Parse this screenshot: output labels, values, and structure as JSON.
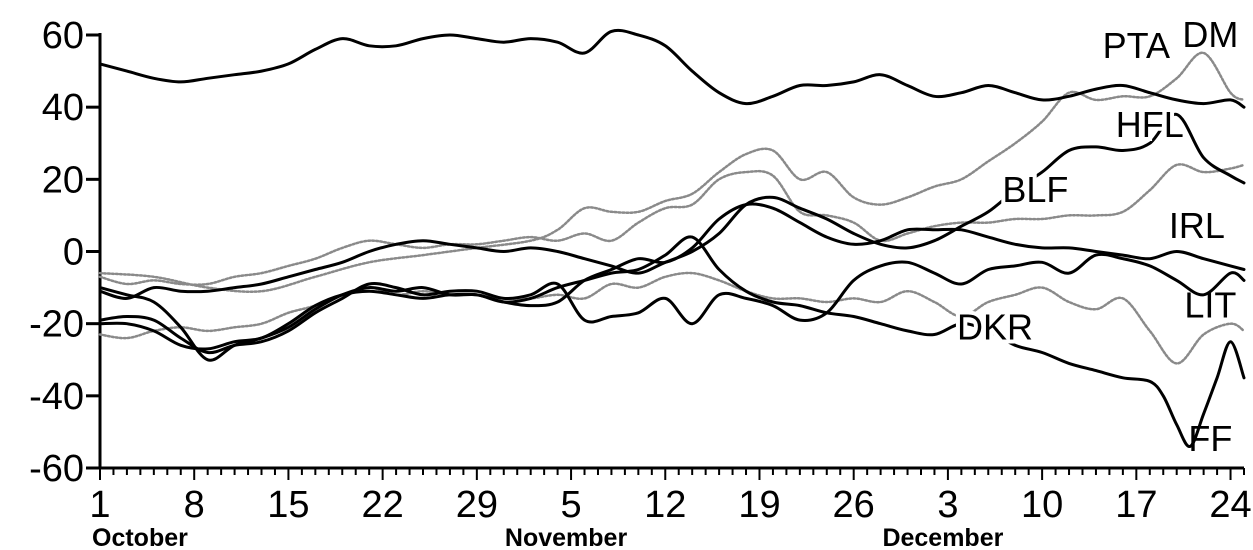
{
  "chart_data": {
    "type": "line",
    "title": "",
    "xlabel": "",
    "ylabel": "",
    "ylim": [
      -60,
      60
    ],
    "xlim": [
      "Oct 1",
      "Dec 25"
    ],
    "grid": false,
    "yticks": [
      "60",
      "40",
      "20",
      "0",
      "-20",
      "-40",
      "-60"
    ],
    "ytick_values": [
      60,
      40,
      20,
      0,
      -20,
      -40,
      -60
    ],
    "xticks": [
      {
        "day": 0,
        "label": "1"
      },
      {
        "day": 7,
        "label": "8"
      },
      {
        "day": 14,
        "label": "15"
      },
      {
        "day": 21,
        "label": "22"
      },
      {
        "day": 28,
        "label": "29"
      },
      {
        "day": 35,
        "label": "5"
      },
      {
        "day": 42,
        "label": "12"
      },
      {
        "day": 49,
        "label": "19"
      },
      {
        "day": 56,
        "label": "26"
      },
      {
        "day": 63,
        "label": "3"
      },
      {
        "day": 70,
        "label": "10"
      },
      {
        "day": 77,
        "label": "17"
      },
      {
        "day": 84,
        "label": "24"
      }
    ],
    "months": [
      {
        "day": 0,
        "label": "October"
      },
      {
        "day": 35,
        "label": "November"
      },
      {
        "day": 63,
        "label": "December"
      }
    ],
    "series": [
      {
        "name": "PTA",
        "style": "solid",
        "label_x": 77,
        "label_y": 57,
        "x": [
          0,
          2,
          4,
          6,
          8,
          10,
          12,
          14,
          16,
          18,
          20,
          22,
          24,
          26,
          28,
          30,
          32,
          34,
          36,
          38,
          40,
          42,
          44,
          46,
          48,
          50,
          52,
          54,
          56,
          58,
          60,
          62,
          64,
          66,
          68,
          70,
          72,
          74,
          76,
          78,
          80,
          82,
          84,
          85
        ],
        "y": [
          52,
          50,
          48,
          47,
          48,
          49,
          50,
          52,
          56,
          59,
          57,
          57,
          59,
          60,
          59,
          58,
          59,
          58,
          55,
          61,
          60,
          57,
          50,
          44,
          41,
          43,
          46,
          46,
          47,
          49,
          46,
          43,
          44,
          46,
          44,
          42,
          43,
          45,
          46,
          44,
          42,
          41,
          42,
          40
        ]
      },
      {
        "name": "DM",
        "style": "dotted",
        "label_x": 82.5,
        "label_y": 60,
        "x": [
          0,
          4,
          8,
          12,
          16,
          20,
          24,
          28,
          32,
          34,
          36,
          38,
          40,
          42,
          44,
          46,
          48,
          50,
          52,
          54,
          56,
          58,
          60,
          62,
          64,
          66,
          68,
          70,
          72,
          74,
          76,
          78,
          80,
          82,
          84,
          85
        ],
        "y": [
          -6,
          -7,
          -10,
          -11,
          -7,
          -3,
          -1,
          1,
          3,
          6,
          12,
          11,
          11,
          14,
          16,
          22,
          27,
          28,
          20,
          22,
          15,
          13,
          15,
          18,
          20,
          25,
          30,
          36,
          44,
          42,
          43,
          43,
          48,
          55,
          44,
          42
        ]
      },
      {
        "name": "HFL",
        "style": "solid",
        "label_x": 78,
        "label_y": 35,
        "x": [
          0,
          2,
          4,
          6,
          8,
          10,
          12,
          14,
          16,
          18,
          20,
          22,
          24,
          26,
          28,
          30,
          32,
          34,
          36,
          38,
          40,
          42,
          44,
          46,
          48,
          50,
          52,
          54,
          56,
          58,
          60,
          62,
          64,
          66,
          68,
          70,
          72,
          74,
          76,
          78,
          80,
          82,
          84,
          85
        ],
        "y": [
          -11,
          -13,
          -10,
          -11,
          -11,
          -10,
          -9,
          -7,
          -5,
          -3,
          0,
          2,
          3,
          2,
          1,
          0,
          1,
          0,
          -2,
          -4,
          -6,
          -3,
          0,
          5,
          13,
          15,
          12,
          9,
          5,
          2,
          1,
          3,
          7,
          11,
          17,
          22,
          28,
          29,
          28,
          30,
          38,
          26,
          21,
          19
        ]
      },
      {
        "name": "BLF",
        "style": "dotted",
        "label_x": 69.5,
        "label_y": 17,
        "x": [
          0,
          2,
          4,
          6,
          8,
          10,
          12,
          14,
          16,
          18,
          20,
          22,
          24,
          26,
          28,
          30,
          32,
          34,
          36,
          38,
          40,
          42,
          44,
          46,
          48,
          50,
          52,
          54,
          56,
          58,
          60,
          62,
          64,
          66,
          68,
          70,
          72,
          74,
          76,
          78,
          80,
          82,
          84,
          85
        ],
        "y": [
          -7,
          -9,
          -8,
          -9,
          -9,
          -7,
          -6,
          -4,
          -2,
          1,
          3,
          2,
          1,
          2,
          2,
          3,
          4,
          3,
          5,
          3,
          8,
          12,
          13,
          20,
          22,
          21,
          11,
          10,
          8,
          3,
          5,
          7,
          8,
          8,
          9,
          9,
          10,
          10,
          11,
          17,
          24,
          22,
          23,
          24
        ]
      },
      {
        "name": "IRL",
        "style": "solid",
        "label_x": 81.5,
        "label_y": 7,
        "x": [
          0,
          2,
          4,
          6,
          8,
          10,
          12,
          14,
          16,
          18,
          20,
          22,
          24,
          26,
          28,
          30,
          32,
          34,
          36,
          38,
          40,
          42,
          44,
          46,
          48,
          50,
          52,
          54,
          56,
          58,
          60,
          62,
          64,
          66,
          68,
          70,
          72,
          74,
          76,
          78,
          80,
          82,
          84,
          85
        ],
        "y": [
          -20,
          -20,
          -22,
          -26,
          -27,
          -25,
          -24,
          -20,
          -15,
          -12,
          -11,
          -12,
          -13,
          -12,
          -12,
          -14,
          -15,
          -14,
          -8,
          -5,
          -2,
          -3,
          1,
          9,
          13,
          12,
          8,
          4,
          2,
          3,
          6,
          6,
          6,
          4,
          2,
          1,
          1,
          0,
          -1,
          -2,
          0,
          -2,
          -4,
          -5
        ]
      },
      {
        "name": "LIT",
        "style": "solid",
        "label_x": 82.5,
        "label_y": -15,
        "x": [
          0,
          2,
          4,
          6,
          8,
          10,
          12,
          14,
          16,
          18,
          20,
          22,
          24,
          26,
          28,
          30,
          32,
          34,
          36,
          38,
          40,
          42,
          44,
          46,
          48,
          50,
          52,
          54,
          56,
          58,
          60,
          62,
          64,
          66,
          68,
          70,
          72,
          74,
          76,
          78,
          80,
          82,
          84,
          85
        ],
        "y": [
          -19,
          -18,
          -19,
          -24,
          -28,
          -26,
          -25,
          -22,
          -17,
          -13,
          -9,
          -10,
          -12,
          -11,
          -11,
          -13,
          -12,
          -9,
          -19,
          -18,
          -17,
          -13,
          -20,
          -12,
          -13,
          -15,
          -19,
          -17,
          -8,
          -4,
          -3,
          -6,
          -9,
          -5,
          -4,
          -3,
          -6,
          -1,
          -2,
          -4,
          -8,
          -12,
          -6,
          -8
        ]
      },
      {
        "name": "DKR",
        "style": "dotted",
        "label_x": 66.5,
        "label_y": -21,
        "x": [
          0,
          2,
          4,
          6,
          8,
          10,
          12,
          14,
          16,
          18,
          20,
          22,
          24,
          26,
          28,
          30,
          32,
          34,
          36,
          38,
          40,
          42,
          44,
          46,
          48,
          50,
          52,
          54,
          56,
          58,
          60,
          62,
          64,
          66,
          68,
          70,
          72,
          74,
          76,
          78,
          80,
          82,
          84,
          85
        ],
        "y": [
          -23,
          -24,
          -22,
          -21,
          -22,
          -21,
          -20,
          -17,
          -15,
          -12,
          -10,
          -12,
          -11,
          -12,
          -12,
          -13,
          -13,
          -12,
          -13,
          -9,
          -10,
          -7,
          -6,
          -8,
          -11,
          -13,
          -13,
          -14,
          -13,
          -14,
          -11,
          -14,
          -18,
          -14,
          -12,
          -10,
          -14,
          -16,
          -13,
          -22,
          -31,
          -23,
          -20,
          -22
        ]
      },
      {
        "name": "FF",
        "style": "solid",
        "label_x": 82.5,
        "label_y": -52,
        "x": [
          0,
          2,
          4,
          6,
          8,
          10,
          12,
          14,
          16,
          18,
          20,
          22,
          24,
          26,
          28,
          30,
          32,
          34,
          36,
          38,
          40,
          42,
          44,
          46,
          48,
          50,
          52,
          54,
          56,
          58,
          60,
          62,
          64,
          66,
          68,
          70,
          72,
          74,
          76,
          78,
          79,
          80,
          81,
          82,
          83,
          84,
          85
        ],
        "y": [
          -10,
          -12,
          -14,
          -21,
          -30,
          -26,
          -24,
          -21,
          -16,
          -12,
          -10,
          -11,
          -10,
          -12,
          -12,
          -14,
          -13,
          -10,
          -8,
          -6,
          -5,
          -1,
          4,
          -5,
          -11,
          -14,
          -15,
          -17,
          -18,
          -20,
          -22,
          -23,
          -20,
          -22,
          -26,
          -28,
          -31,
          -33,
          -35,
          -36,
          -40,
          -48,
          -54,
          -45,
          -35,
          -25,
          -35
        ]
      }
    ]
  }
}
